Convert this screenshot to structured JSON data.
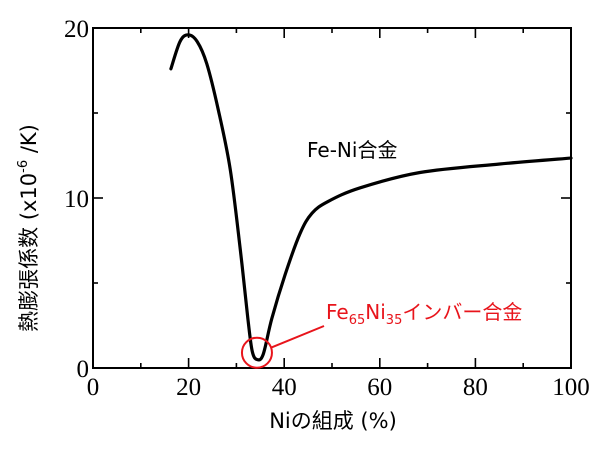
{
  "chart_data": {
    "type": "line",
    "title": "",
    "xlabel": "Niの組成 (%)",
    "ylabel": "熱膨張係数 (x10⁻⁶ /K)",
    "ylabel_parts": {
      "main": "熱膨張係数 (x10",
      "sup": "-6",
      "tail": " /K)"
    },
    "xlim": [
      0,
      100
    ],
    "ylim": [
      0,
      20
    ],
    "x_ticks": [
      0,
      20,
      40,
      60,
      80,
      100
    ],
    "x_tick_labels": [
      "0",
      "20",
      "40",
      "60",
      "80",
      "100"
    ],
    "x_minor_ticks": [
      10,
      30,
      50,
      70,
      90
    ],
    "y_ticks": [
      0,
      10,
      20
    ],
    "y_tick_labels": [
      "0",
      "10",
      "20"
    ],
    "y_minor_ticks": [
      5,
      15
    ],
    "grid": false,
    "legend": null,
    "series": [
      {
        "name": "Fe-Ni合金",
        "color": "#000000",
        "x": [
          16.3,
          18.2,
          19.9,
          21.8,
          23.8,
          26.2,
          28.7,
          30.8,
          32.4,
          33.3,
          34.3,
          35.6,
          37.4,
          40.2,
          43.3,
          45.8,
          49.2,
          55.9,
          68.4,
          85.1,
          100
        ],
        "y": [
          17.6,
          19.2,
          19.6,
          19.2,
          17.9,
          15.2,
          11.7,
          7.0,
          2.9,
          1.0,
          0.5,
          0.8,
          2.9,
          5.5,
          7.9,
          9.1,
          9.8,
          10.6,
          11.5,
          12.0,
          12.35
        ]
      }
    ],
    "annotations": [
      {
        "text": "Fe-Ni合金",
        "x": 49,
        "y": 12.8,
        "color": "#000000"
      },
      {
        "text": "Fe65Ni35インバー合金",
        "parts": {
          "a": "Fe",
          "sub1": "65",
          "b": "Ni",
          "sub2": "35",
          "c": "インバー合金"
        },
        "x": 49.5,
        "y": 3.5,
        "color": "#e8141b",
        "marker": {
          "type": "circle",
          "x": 34.3,
          "y": 0.9
        }
      }
    ]
  }
}
